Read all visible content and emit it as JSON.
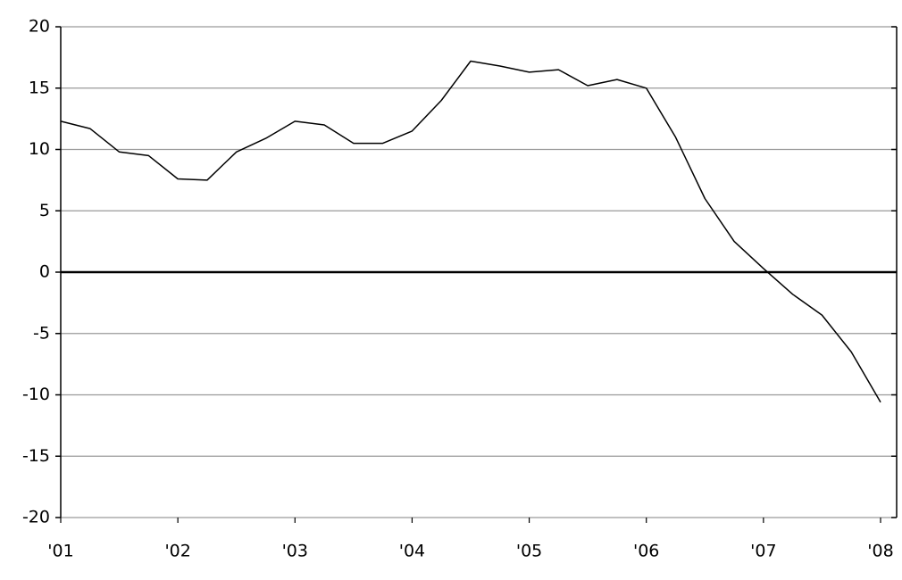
{
  "chart_data": {
    "type": "line",
    "x": [
      2001.0,
      2001.25,
      2001.5,
      2001.75,
      2002.0,
      2002.25,
      2002.5,
      2002.75,
      2003.0,
      2003.25,
      2003.5,
      2003.75,
      2004.0,
      2004.25,
      2004.5,
      2004.75,
      2005.0,
      2005.25,
      2005.5,
      2005.75,
      2006.0,
      2006.25,
      2006.5,
      2006.75,
      2007.0,
      2007.25,
      2007.5,
      2007.75,
      2008.0
    ],
    "values": [
      12.3,
      11.7,
      9.8,
      9.5,
      7.6,
      7.5,
      9.8,
      10.9,
      12.3,
      12.0,
      10.5,
      10.5,
      11.5,
      14.0,
      17.2,
      16.8,
      16.3,
      16.5,
      15.2,
      15.7,
      15.0,
      11.0,
      6.0,
      2.5,
      0.3,
      -1.8,
      -3.5,
      -6.5,
      -10.6
    ],
    "color": "#000000",
    "xlim": [
      2001,
      2008
    ],
    "xticks": [
      {
        "value": 2001,
        "label": "'01"
      },
      {
        "value": 2002,
        "label": "'02"
      },
      {
        "value": 2003,
        "label": "'03"
      },
      {
        "value": 2004,
        "label": "'04"
      },
      {
        "value": 2005,
        "label": "'05"
      },
      {
        "value": 2006,
        "label": "'06"
      },
      {
        "value": 2007,
        "label": "'07"
      },
      {
        "value": 2008,
        "label": "'08"
      }
    ],
    "ylim": [
      -20,
      20
    ],
    "yticks": [
      -20,
      -15,
      -10,
      -5,
      0,
      5,
      10,
      15,
      20
    ],
    "grid": true
  }
}
